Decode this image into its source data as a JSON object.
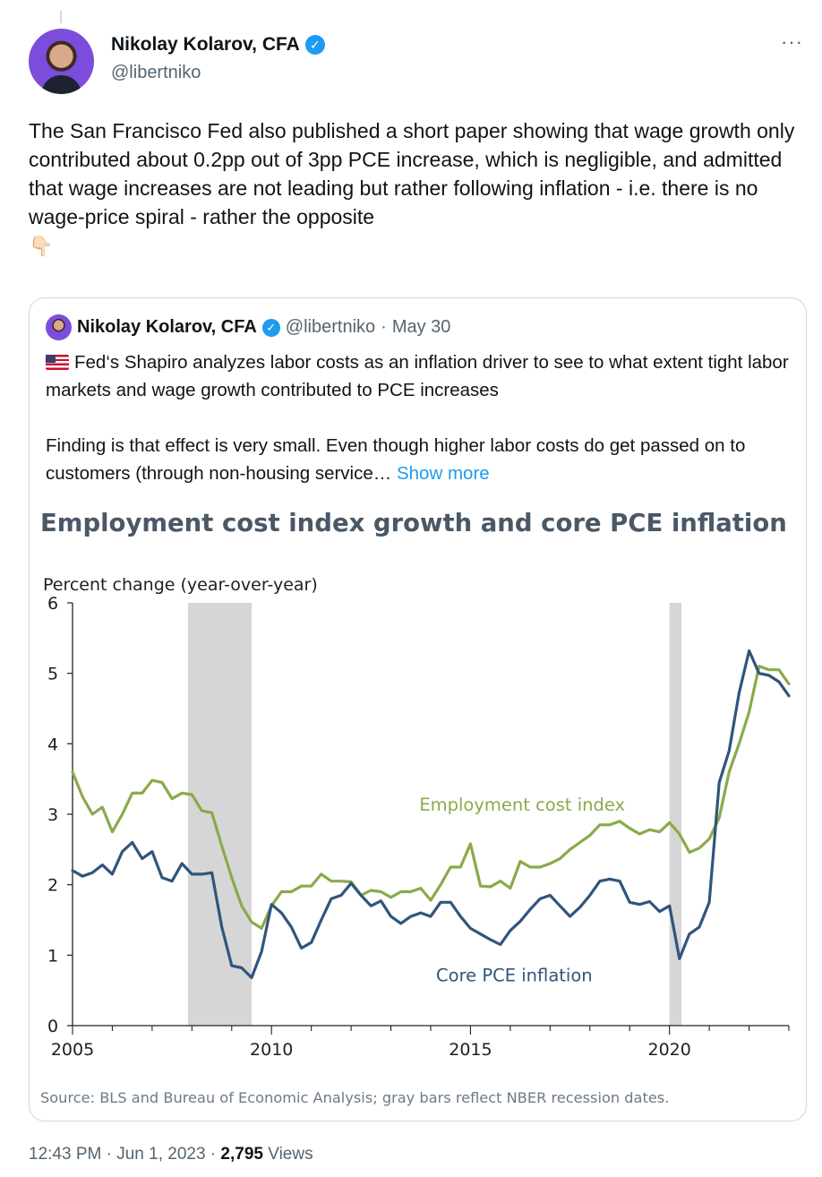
{
  "author": {
    "name": "Nikolay Kolarov, CFA",
    "handle": "@libertniko"
  },
  "tweet": {
    "text": "The San Francisco Fed also published a short paper showing that wage growth only contributed about 0.2pp out of 3pp PCE increase, which is negligible, and admitted that wage increases are not leading but rather following inflation - i.e. there is no wage-price spiral - rather the opposite",
    "emoji": "👇🏻"
  },
  "quoted": {
    "name": "Nikolay Kolarov, CFA",
    "handle": "@libertniko",
    "date": "May 30",
    "text": "Fed‘s Shapiro analyzes labor costs as an inflation driver to see to what extent tight labor markets and wage growth contributed to PCE increases\n\nFinding is that effect is very small. Even though higher labor costs do get passed on to customers (through non-housing service…",
    "show_more": "Show more"
  },
  "chart_data": {
    "type": "line",
    "title": "Employment cost index growth and core PCE inflation",
    "ylabel": "Percent change (year-over-year)",
    "xlabel": "",
    "xlim": [
      2005,
      2023
    ],
    "ylim": [
      0,
      6
    ],
    "x_ticks": [
      "2005",
      "2010",
      "2015",
      "2020"
    ],
    "y_ticks": [
      "0",
      "1",
      "2",
      "3",
      "4",
      "5",
      "6"
    ],
    "grid": false,
    "source": "Source: BLS and Bureau of Economic Analysis; gray bars reflect NBER recession dates.",
    "recessions": [
      [
        2007.9,
        2009.5
      ],
      [
        2020.0,
        2020.3
      ]
    ],
    "series": [
      {
        "name": "Employment cost index",
        "color": "#8aaa4a",
        "x": [
          2005,
          2005.25,
          2005.5,
          2005.75,
          2006,
          2006.25,
          2006.5,
          2006.75,
          2007,
          2007.25,
          2007.5,
          2007.75,
          2008,
          2008.25,
          2008.5,
          2008.75,
          2009,
          2009.25,
          2009.5,
          2009.75,
          2010,
          2010.25,
          2010.5,
          2010.75,
          2011,
          2011.25,
          2011.5,
          2011.75,
          2012,
          2012.25,
          2012.5,
          2012.75,
          2013,
          2013.25,
          2013.5,
          2013.75,
          2014,
          2014.25,
          2014.5,
          2014.75,
          2015,
          2015.25,
          2015.5,
          2015.75,
          2016,
          2016.25,
          2016.5,
          2016.75,
          2017,
          2017.25,
          2017.5,
          2017.75,
          2018,
          2018.25,
          2018.5,
          2018.75,
          2019,
          2019.25,
          2019.5,
          2019.75,
          2020,
          2020.25,
          2020.5,
          2020.75,
          2021,
          2021.25,
          2021.5,
          2021.75,
          2022,
          2022.25,
          2022.5,
          2022.75,
          2023
        ],
        "values": [
          3.6,
          3.25,
          3.0,
          3.1,
          2.75,
          3.0,
          3.3,
          3.3,
          3.48,
          3.45,
          3.22,
          3.3,
          3.28,
          3.05,
          3.02,
          2.55,
          2.1,
          1.7,
          1.47,
          1.38,
          1.7,
          1.9,
          1.9,
          1.98,
          1.98,
          2.15,
          2.05,
          2.05,
          2.04,
          1.85,
          1.92,
          1.9,
          1.82,
          1.9,
          1.9,
          1.95,
          1.78,
          2.0,
          2.25,
          2.25,
          2.58,
          1.98,
          1.97,
          2.05,
          1.95,
          2.33,
          2.25,
          2.25,
          2.3,
          2.37,
          2.5,
          2.6,
          2.7,
          2.85,
          2.85,
          2.9,
          2.8,
          2.72,
          2.78,
          2.75,
          2.88,
          2.72,
          2.46,
          2.52,
          2.65,
          2.95,
          3.6,
          4.0,
          4.45,
          5.1,
          5.05,
          5.05,
          4.85
        ]
      },
      {
        "name": "Core PCE inflation",
        "color": "#30557c",
        "x": [
          2005,
          2005.25,
          2005.5,
          2005.75,
          2006,
          2006.25,
          2006.5,
          2006.75,
          2007,
          2007.25,
          2007.5,
          2007.75,
          2008,
          2008.25,
          2008.5,
          2008.75,
          2009,
          2009.25,
          2009.5,
          2009.75,
          2010,
          2010.25,
          2010.5,
          2010.75,
          2011,
          2011.25,
          2011.5,
          2011.75,
          2012,
          2012.25,
          2012.5,
          2012.75,
          2013,
          2013.25,
          2013.5,
          2013.75,
          2014,
          2014.25,
          2014.5,
          2014.75,
          2015,
          2015.25,
          2015.5,
          2015.75,
          2016,
          2016.25,
          2016.5,
          2016.75,
          2017,
          2017.25,
          2017.5,
          2017.75,
          2018,
          2018.25,
          2018.5,
          2018.75,
          2019,
          2019.25,
          2019.5,
          2019.75,
          2020,
          2020.25,
          2020.5,
          2020.75,
          2021,
          2021.25,
          2021.5,
          2021.75,
          2022,
          2022.25,
          2022.5,
          2022.75,
          2023
        ],
        "values": [
          2.2,
          2.12,
          2.17,
          2.28,
          2.15,
          2.47,
          2.6,
          2.37,
          2.47,
          2.1,
          2.05,
          2.3,
          2.15,
          2.15,
          2.17,
          1.4,
          0.85,
          0.82,
          0.68,
          1.05,
          1.72,
          1.6,
          1.4,
          1.1,
          1.18,
          1.5,
          1.8,
          1.85,
          2.02,
          1.85,
          1.7,
          1.77,
          1.55,
          1.45,
          1.55,
          1.6,
          1.55,
          1.75,
          1.75,
          1.55,
          1.38,
          1.3,
          1.22,
          1.15,
          1.35,
          1.48,
          1.65,
          1.8,
          1.85,
          1.7,
          1.55,
          1.68,
          1.85,
          2.05,
          2.08,
          2.05,
          1.75,
          1.72,
          1.76,
          1.62,
          1.7,
          0.95,
          1.3,
          1.4,
          1.75,
          3.45,
          3.9,
          4.72,
          5.32,
          5.0,
          4.97,
          4.88,
          4.68
        ]
      }
    ],
    "annotations": [
      {
        "text": "Employment cost index",
        "x": 2016.3,
        "y": 3.05
      },
      {
        "text": "Core PCE inflation",
        "x": 2016.1,
        "y": 0.63
      }
    ]
  },
  "footer": {
    "time": "12:43 PM",
    "date": "Jun 1, 2023",
    "views_count": "2,795",
    "views_label": "Views"
  }
}
